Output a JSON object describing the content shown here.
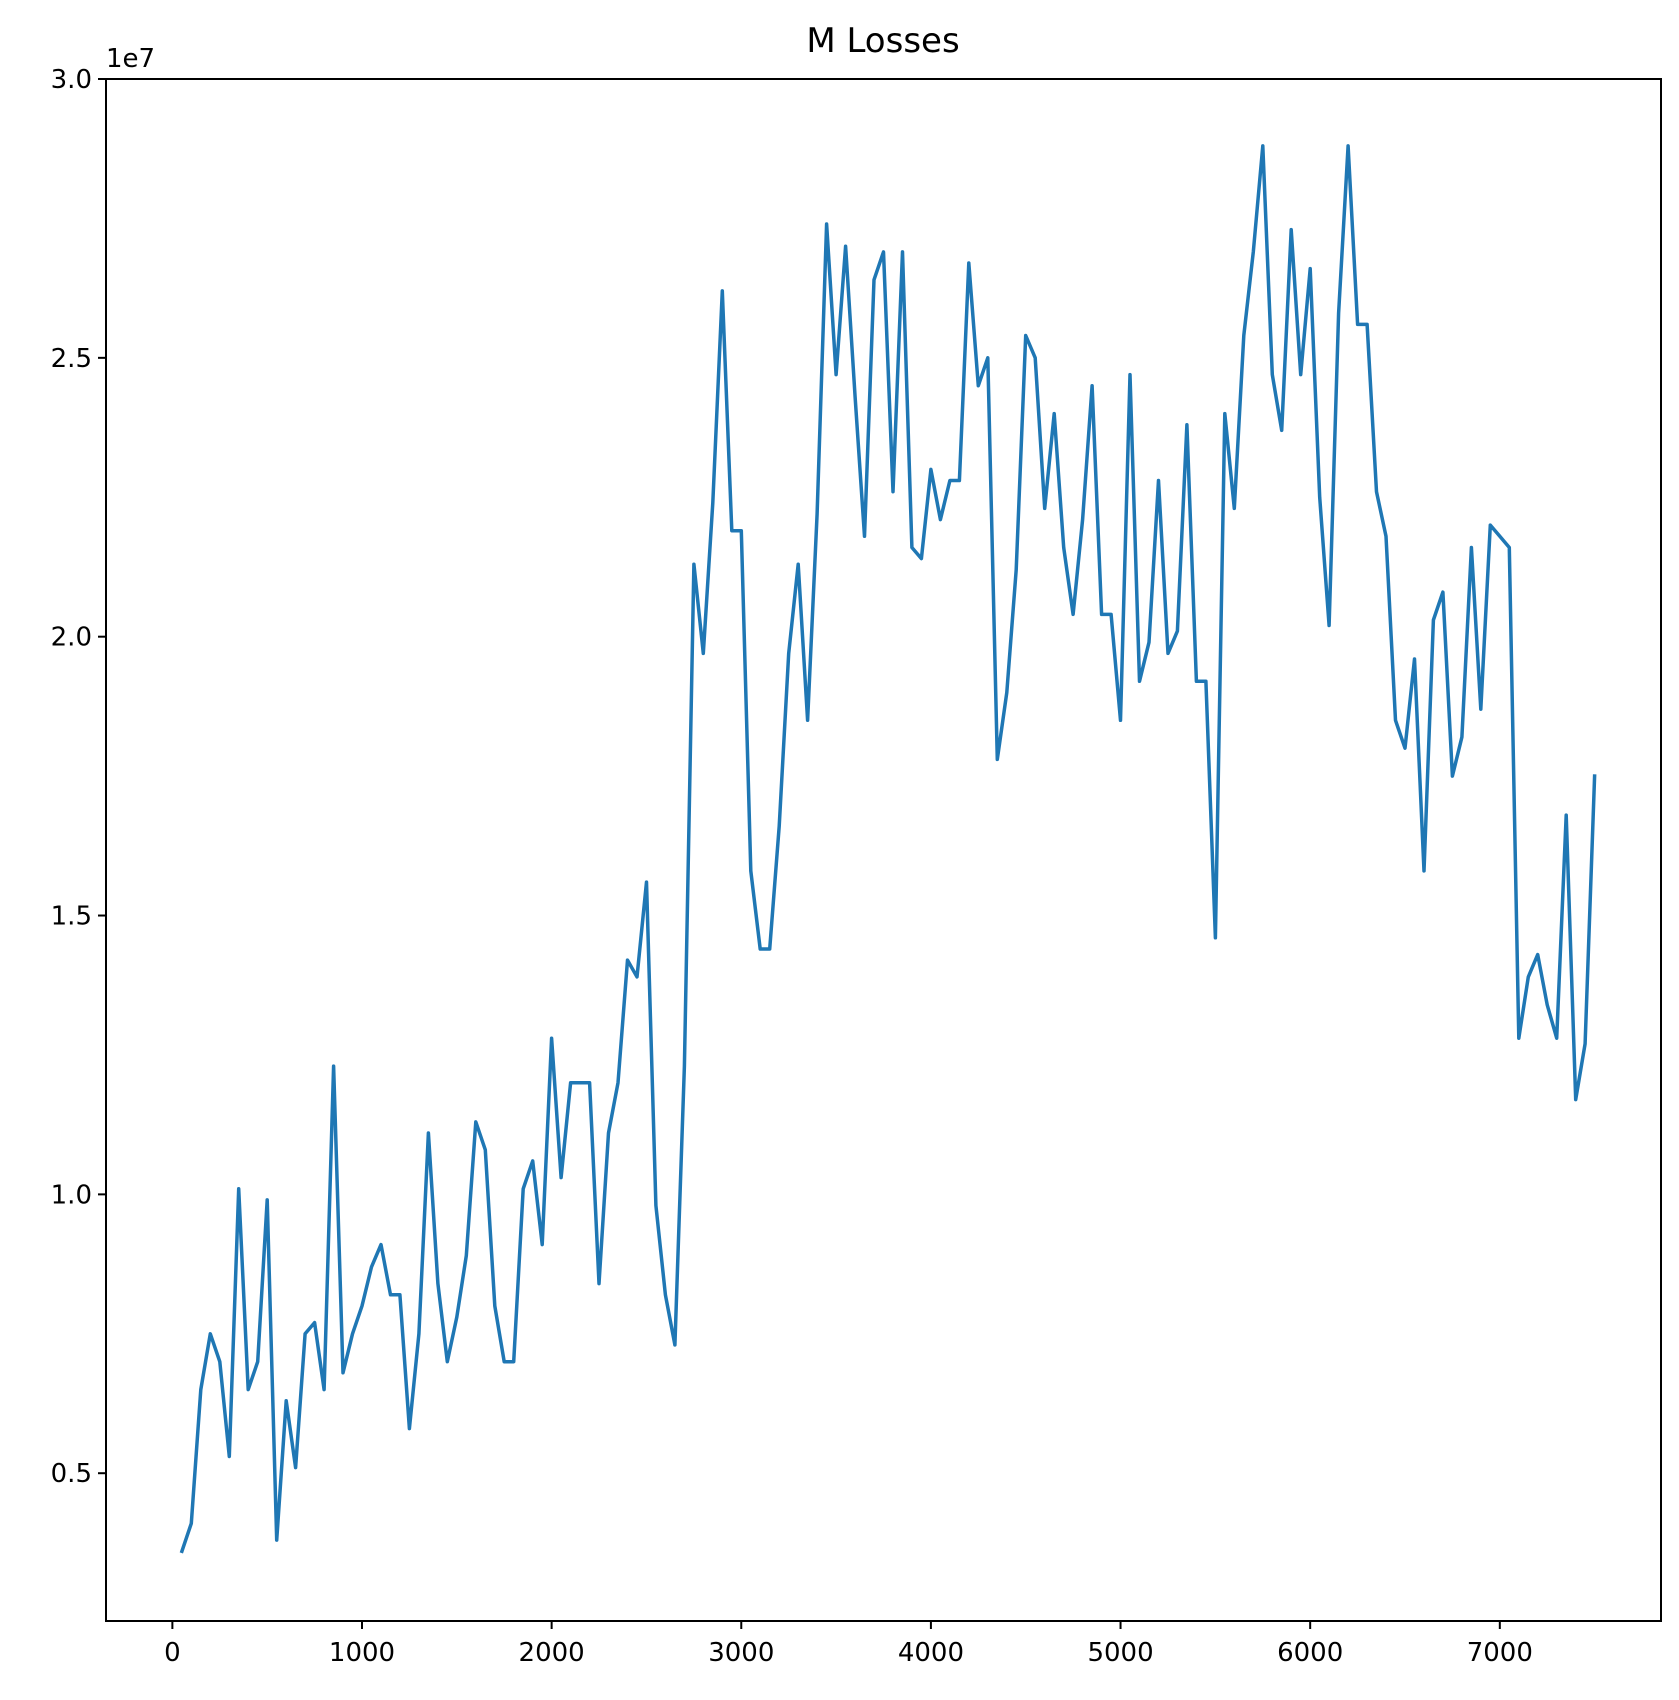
{
  "chart_data": {
    "type": "line",
    "title": "M Losses",
    "xlabel": "",
    "ylabel": "",
    "y_scale_label": "1e7",
    "xlim": [
      -350,
      7850
    ],
    "ylim": [
      2350000,
      30000000
    ],
    "x_ticks": [
      0,
      1000,
      2000,
      3000,
      4000,
      5000,
      6000,
      7000
    ],
    "x_tick_labels": [
      "0",
      "1000",
      "2000",
      "3000",
      "4000",
      "5000",
      "6000",
      "7000"
    ],
    "y_ticks": [
      5000000,
      10000000,
      15000000,
      20000000,
      25000000,
      30000000
    ],
    "y_tick_labels": [
      "0.5",
      "1.0",
      "1.5",
      "2.0",
      "2.5",
      "3.0"
    ],
    "grid": false,
    "line_color": "#1f77b4",
    "series": [
      {
        "x": [
          50,
          100,
          150,
          200,
          250,
          300,
          350,
          400,
          450,
          500,
          550,
          600,
          650,
          700,
          750,
          800,
          850,
          900,
          950,
          1000,
          1050,
          1100,
          1150,
          1200,
          1250,
          1300,
          1350,
          1400,
          1450,
          1500,
          1550,
          1600,
          1650,
          1700,
          1750,
          1800,
          1850,
          1900,
          1950,
          2000,
          2050,
          2100,
          2150,
          2200,
          2250,
          2300,
          2350,
          2400,
          2450,
          2500,
          2550,
          2600,
          2650,
          2700,
          2750,
          2800,
          2850,
          2900,
          2950,
          3000,
          3050,
          3100,
          3150,
          3200,
          3250,
          3300,
          3350,
          3400,
          3450,
          3500,
          3550,
          3600,
          3650,
          3700,
          3750,
          3800,
          3850,
          3900,
          3950,
          4000,
          4050,
          4100,
          4150,
          4200,
          4250,
          4300,
          4350,
          4400,
          4450,
          4500,
          4550,
          4600,
          4650,
          4700,
          4750,
          4800,
          4850,
          4900,
          4950,
          5000,
          5050,
          5100,
          5150,
          5200,
          5250,
          5300,
          5350,
          5400,
          5450,
          5500,
          5550,
          5600,
          5650,
          5700,
          5750,
          5800,
          5850,
          5900,
          5950,
          6000,
          6050,
          6100,
          6150,
          6200,
          6250,
          6300,
          6350,
          6400,
          6450,
          6500,
          6550,
          6600,
          6650,
          6700,
          6750,
          6800,
          6850,
          6900,
          6950,
          7000,
          7050,
          7100,
          7150,
          7200,
          7250,
          7300,
          7350,
          7400,
          7450,
          7500
        ],
        "values": [
          3600000,
          4100000,
          6500000,
          7500000,
          7000000,
          5300000,
          10100000,
          6500000,
          7000000,
          9900000,
          3800000,
          6300000,
          5100000,
          7500000,
          7700000,
          6500000,
          12300000,
          6800000,
          7500000,
          8000000,
          8700000,
          9100000,
          8200000,
          8200000,
          5800000,
          7500000,
          11100000,
          8400000,
          7000000,
          7800000,
          8900000,
          11300000,
          10800000,
          8000000,
          7000000,
          7000000,
          10100000,
          10600000,
          9100000,
          12800000,
          10300000,
          12000000,
          12000000,
          12000000,
          8400000,
          11100000,
          12000000,
          14200000,
          13900000,
          15600000,
          9800000,
          8200000,
          7300000,
          12300000,
          21300000,
          19700000,
          22400000,
          26200000,
          21900000,
          21900000,
          15800000,
          14400000,
          14400000,
          16600000,
          19700000,
          21300000,
          18500000,
          22200000,
          27400000,
          24700000,
          27000000,
          24300000,
          21800000,
          26400000,
          26900000,
          22600000,
          26900000,
          21600000,
          21400000,
          23000000,
          22100000,
          22800000,
          22800000,
          26700000,
          24500000,
          25000000,
          17800000,
          19000000,
          21200000,
          25400000,
          25000000,
          22300000,
          24000000,
          21600000,
          20400000,
          22100000,
          24500000,
          20400000,
          20400000,
          18500000,
          24700000,
          19200000,
          19900000,
          22800000,
          19700000,
          20100000,
          23800000,
          19200000,
          19200000,
          14600000,
          24000000,
          22300000,
          25400000,
          26900000,
          28800000,
          24700000,
          23700000,
          27300000,
          24700000,
          26600000,
          22500000,
          20200000,
          25800000,
          28800000,
          25600000,
          25600000,
          22600000,
          21800000,
          18500000,
          18000000,
          19600000,
          15800000,
          20300000,
          20800000,
          17500000,
          18200000,
          21600000,
          18700000,
          22000000,
          21800000,
          21600000,
          12800000,
          13900000,
          14300000,
          13400000,
          12800000,
          16800000,
          11700000,
          12700000,
          17500000
        ]
      }
    ]
  }
}
